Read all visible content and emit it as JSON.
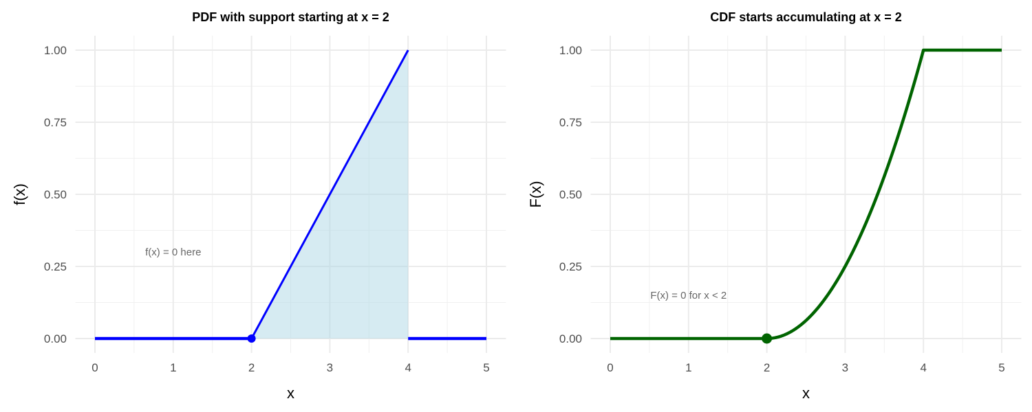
{
  "chart_data": [
    {
      "type": "line",
      "title": "PDF with support starting at x = 2",
      "xlabel": "x",
      "ylabel": "f(x)",
      "xlim": [
        0,
        5
      ],
      "ylim": [
        0,
        1
      ],
      "xticks": [
        "0",
        "1",
        "2",
        "3",
        "4",
        "5"
      ],
      "yticks": [
        "0.00",
        "0.25",
        "0.50",
        "0.75",
        "1.00"
      ],
      "grid": true,
      "line_color": "#0000ff",
      "fill_color": "#add8e6",
      "series": [
        {
          "x": [
            0,
            2
          ],
          "y": [
            0,
            0
          ]
        },
        {
          "x": [
            2,
            4
          ],
          "y": [
            0,
            1
          ],
          "shaded": true
        },
        {
          "x": [
            4,
            5
          ],
          "y": [
            0,
            0
          ]
        }
      ],
      "points": [
        {
          "x": 2,
          "y": 0
        }
      ],
      "annotations": [
        {
          "text": "f(x) = 0 here",
          "x": 1,
          "y": 0.3
        }
      ]
    },
    {
      "type": "line",
      "title": "CDF starts accumulating at x = 2",
      "xlabel": "x",
      "ylabel": "F(x)",
      "xlim": [
        0,
        5
      ],
      "ylim": [
        0,
        1
      ],
      "xticks": [
        "0",
        "1",
        "2",
        "3",
        "4",
        "5"
      ],
      "yticks": [
        "0.00",
        "0.25",
        "0.50",
        "0.75",
        "1.00"
      ],
      "grid": true,
      "line_color": "#006400",
      "series": [
        {
          "x": [
            0,
            2,
            2.25,
            2.5,
            2.75,
            3,
            3.25,
            3.5,
            3.75,
            4,
            5
          ],
          "y": [
            0,
            0,
            0.0156,
            0.0625,
            0.1406,
            0.25,
            0.3906,
            0.5625,
            0.7656,
            1,
            1
          ]
        }
      ],
      "points": [
        {
          "x": 2,
          "y": 0
        }
      ],
      "annotations": [
        {
          "text": "F(x) = 0 for x < 2",
          "x": 1,
          "y": 0.15
        }
      ]
    }
  ]
}
